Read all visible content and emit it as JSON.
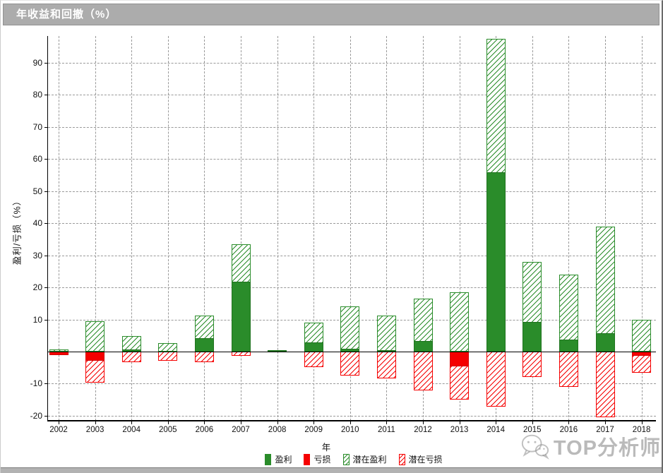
{
  "window": {
    "title": "年收益和回撤（%）"
  },
  "axes": {
    "y_label": "盈利/亏损（%）",
    "x_label": "年",
    "y_ticks": [
      90,
      80,
      70,
      60,
      50,
      40,
      30,
      20,
      10,
      -10,
      -20
    ],
    "y_range": [
      -21.5,
      98.3
    ],
    "grid": "dashed-gray"
  },
  "chart_data": {
    "type": "bar",
    "title": "年收益和回撤（%）",
    "xlabel": "年",
    "ylabel": "盈利/亏损（%）",
    "categories": [
      2002,
      2003,
      2004,
      2005,
      2006,
      2007,
      2008,
      2009,
      2010,
      2011,
      2012,
      2013,
      2014,
      2015,
      2016,
      2017,
      2018
    ],
    "series": [
      {
        "name": "盈利",
        "key": "profit",
        "style": "solid",
        "color": "#2a8c2a",
        "values": [
          0,
          0,
          0.6,
          0,
          4.2,
          21.8,
          0.4,
          2.9,
          0.9,
          0.5,
          3.2,
          0,
          55.9,
          9.3,
          3.8,
          5.8,
          0
        ]
      },
      {
        "name": "亏损",
        "key": "loss",
        "style": "solid",
        "color": "#f50000",
        "values": [
          -1.0,
          -2.9,
          0,
          0,
          0,
          0,
          0,
          0,
          0,
          0,
          0,
          -4.7,
          0,
          0,
          0,
          0,
          -1.4
        ]
      },
      {
        "name": "潜在盈利",
        "key": "potential-profit",
        "style": "hatched",
        "color": "#2a8c2a",
        "values": [
          0.7,
          9.5,
          4.8,
          2.7,
          11.2,
          33.5,
          0.5,
          9.1,
          14.1,
          11.2,
          16.4,
          18.4,
          97.4,
          28.0,
          24.0,
          38.9,
          10.0
        ]
      },
      {
        "name": "潜在亏损",
        "key": "potential-loss",
        "style": "hatched",
        "color": "#f50000",
        "values": [
          -1.0,
          -9.6,
          -3.2,
          -2.8,
          -3.3,
          -1.3,
          0,
          -4.9,
          -7.4,
          -8.3,
          -12.1,
          -15.0,
          -17.2,
          -7.9,
          -11.1,
          -20.5,
          -6.6
        ]
      }
    ],
    "ylim": [
      -21.5,
      98.3
    ],
    "grid": true,
    "legend_position": "bottom-center"
  },
  "legend": {
    "items": [
      {
        "label": "盈利",
        "swatch": "solid-green"
      },
      {
        "label": "亏损",
        "swatch": "solid-red"
      },
      {
        "label": "潜在盈利",
        "swatch": "hatched-green"
      },
      {
        "label": "潜在亏损",
        "swatch": "hatched-red"
      }
    ]
  },
  "watermark": {
    "text": "TOP分析师",
    "icon": "wechat-logo"
  },
  "colors": {
    "profit": "#2a8c2a",
    "loss": "#f50000",
    "titlebar_bg": "#acacac",
    "grid": "#999999",
    "axis": "#000000"
  }
}
